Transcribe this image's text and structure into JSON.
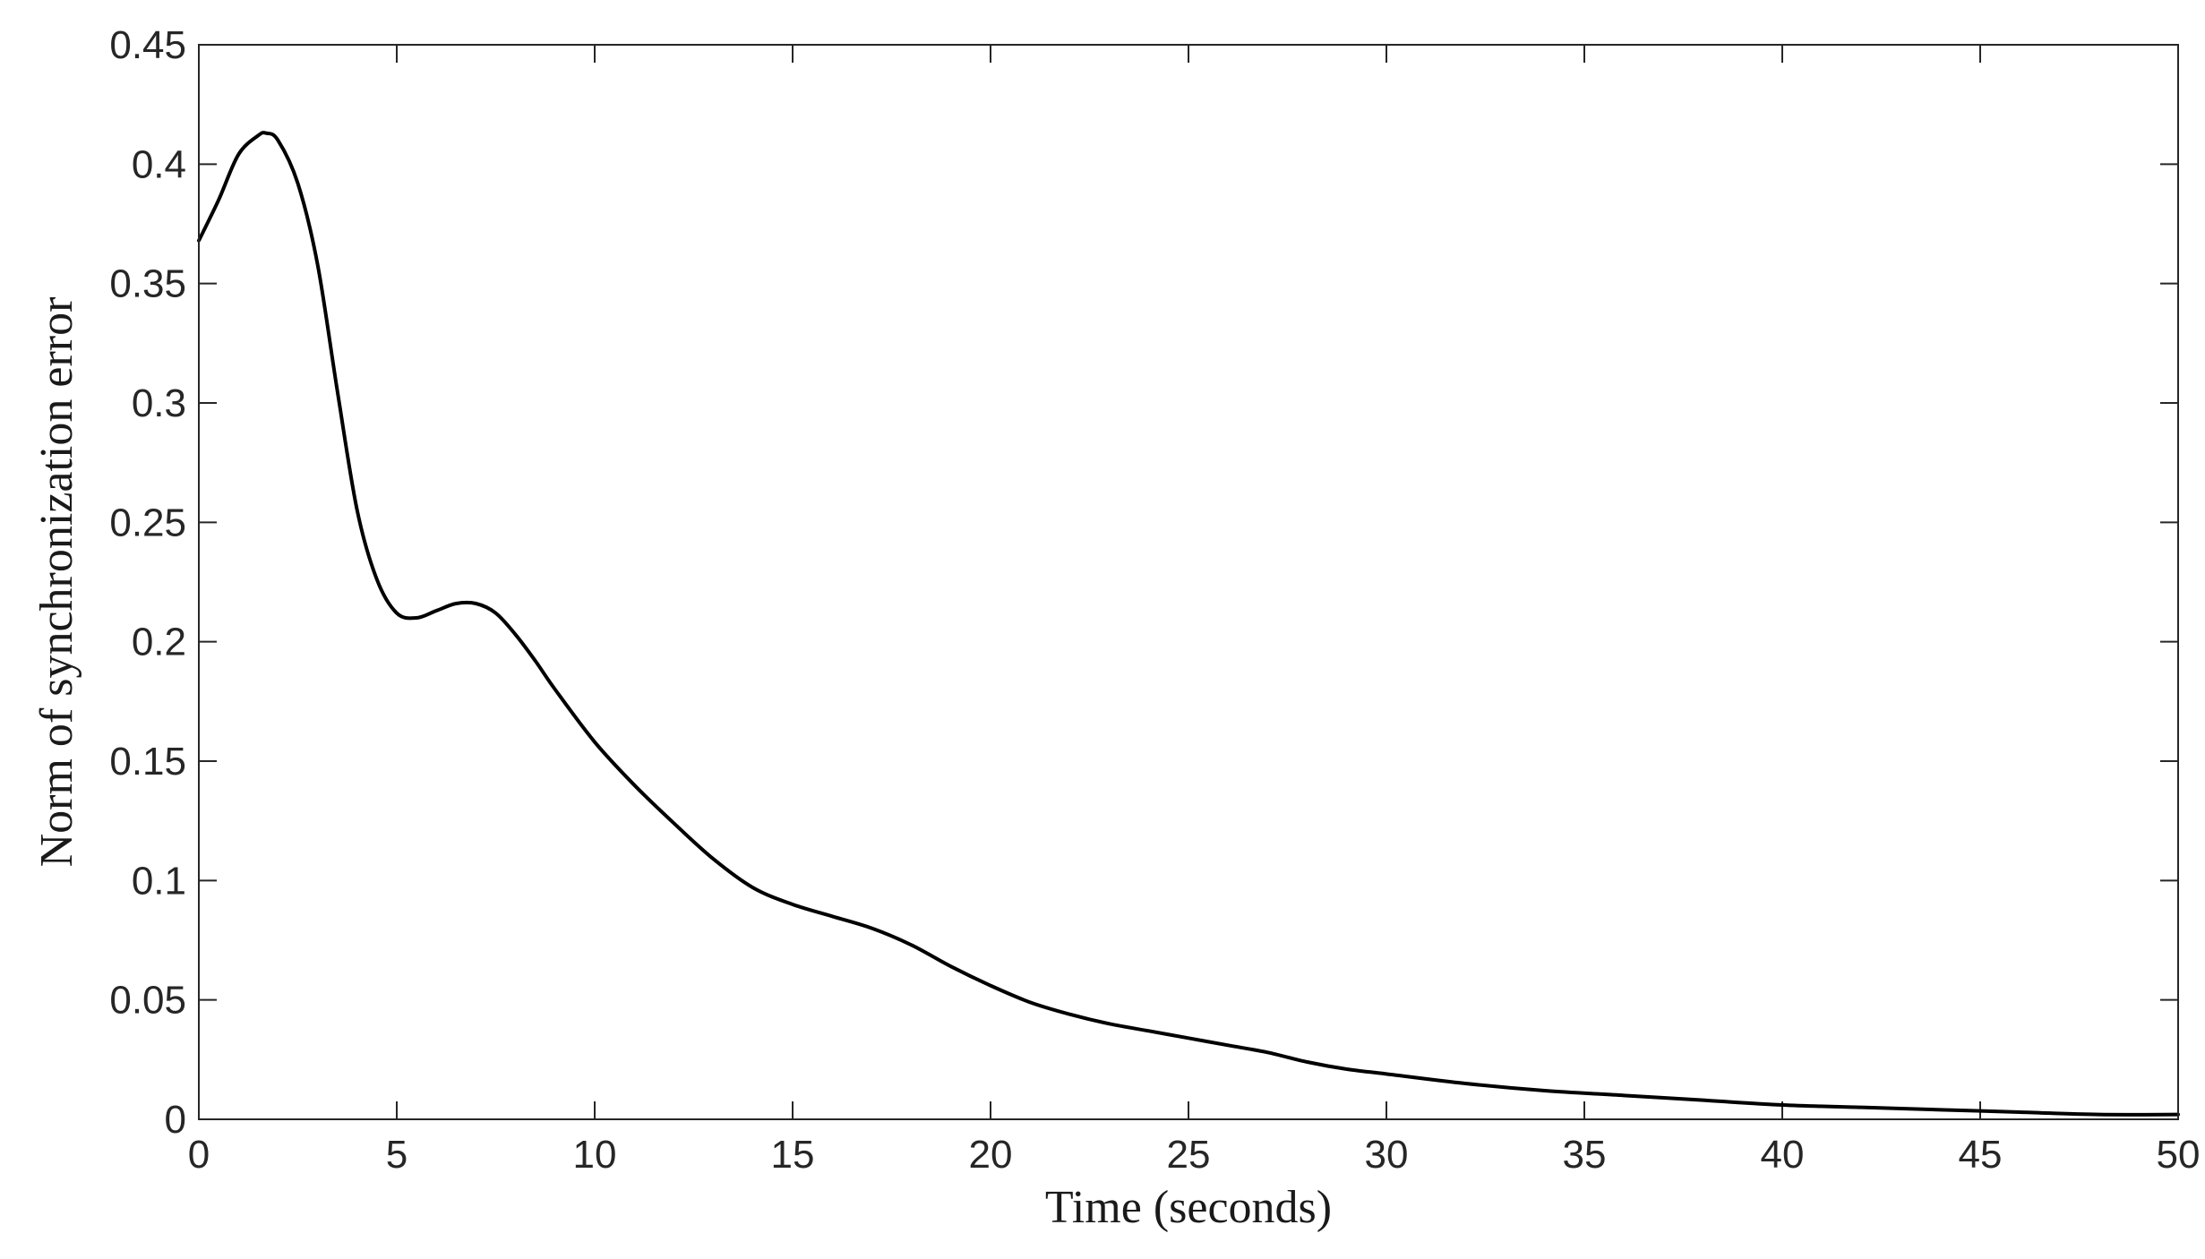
{
  "chart_data": {
    "type": "line",
    "title": "",
    "xlabel": "Time (seconds)",
    "ylabel": "Norm of synchronization error",
    "xlim": [
      0,
      50
    ],
    "ylim": [
      0,
      0.45
    ],
    "xticks": [
      0,
      5,
      10,
      15,
      20,
      25,
      30,
      35,
      40,
      45,
      50
    ],
    "xtick_labels": [
      "0",
      "5",
      "10",
      "15",
      "20",
      "25",
      "30",
      "35",
      "40",
      "45",
      "50"
    ],
    "yticks": [
      0,
      0.05,
      0.1,
      0.15,
      0.2,
      0.25,
      0.3,
      0.35,
      0.4,
      0.45
    ],
    "ytick_labels": [
      "0",
      "0.05",
      "0.1",
      "0.15",
      "0.2",
      "0.25",
      "0.3",
      "0.35",
      "0.4",
      "0.45"
    ],
    "grid": false,
    "legend": "none",
    "colors": {
      "line": "#000000",
      "axis": "#262626"
    },
    "series": [
      {
        "x": [
          0,
          0.5,
          1,
          1.5,
          1.7,
          2,
          2.5,
          3,
          3.5,
          4,
          4.5,
          5,
          5.5,
          6,
          6.5,
          7,
          7.5,
          8,
          8.5,
          9,
          10,
          11,
          12,
          13,
          14,
          15,
          16,
          17,
          18,
          19,
          20,
          21,
          22,
          23,
          24,
          25,
          26,
          27,
          28,
          29,
          30,
          32,
          34,
          36,
          38,
          40,
          42,
          44,
          46,
          48,
          50
        ],
        "y": [
          0.368,
          0.385,
          0.404,
          0.412,
          0.413,
          0.41,
          0.392,
          0.358,
          0.305,
          0.255,
          0.226,
          0.212,
          0.21,
          0.213,
          0.216,
          0.216,
          0.212,
          0.203,
          0.192,
          0.18,
          0.158,
          0.14,
          0.124,
          0.109,
          0.097,
          0.09,
          0.085,
          0.08,
          0.073,
          0.064,
          0.056,
          0.049,
          0.044,
          0.04,
          0.037,
          0.034,
          0.031,
          0.028,
          0.024,
          0.021,
          0.019,
          0.015,
          0.012,
          0.01,
          0.008,
          0.006,
          0.005,
          0.004,
          0.003,
          0.002,
          0.002
        ]
      }
    ]
  }
}
